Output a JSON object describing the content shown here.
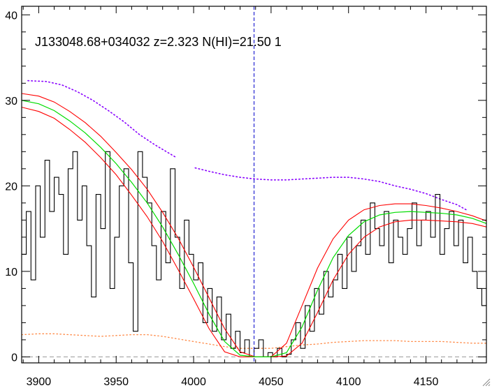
{
  "chart_data": {
    "type": "line",
    "title": "J133048.68+034032 z=2.323 N(HI)=21.50 1",
    "xlabel": "",
    "ylabel": "",
    "xlim": [
      3889,
      4189
    ],
    "ylim": [
      -0.7,
      41
    ],
    "x_ticks": [
      3900,
      3950,
      4000,
      4050,
      4100,
      4150
    ],
    "y_ticks": [
      0,
      10,
      20,
      30,
      40
    ],
    "grid": false,
    "legend": "none",
    "marker_line_x": 4039,
    "colors": {
      "flux": "#000000",
      "fit": "#00dd00",
      "fit_bounds": "#ff0000",
      "continuum": "#8800ff",
      "error": "#ff8844",
      "marker": "#0000cc",
      "zero_line": "#999999"
    },
    "series": [
      {
        "role": "flux",
        "x": [
          3889,
          3892,
          3895,
          3898,
          3901,
          3904,
          3907,
          3910,
          3913,
          3916,
          3919,
          3922,
          3925,
          3928,
          3931,
          3934,
          3937,
          3940,
          3943,
          3946,
          3949,
          3952,
          3955,
          3958,
          3961,
          3964,
          3967,
          3970,
          3973,
          3976,
          3979,
          3982,
          3985,
          3988,
          3991,
          3994,
          3997,
          4000,
          4003,
          4006,
          4009,
          4012,
          4015,
          4018,
          4021,
          4024,
          4027,
          4030,
          4033,
          4036,
          4039,
          4042,
          4045,
          4048,
          4051,
          4054,
          4057,
          4060,
          4063,
          4066,
          4069,
          4072,
          4075,
          4078,
          4081,
          4084,
          4087,
          4090,
          4093,
          4096,
          4099,
          4102,
          4105,
          4108,
          4111,
          4114,
          4117,
          4120,
          4123,
          4126,
          4129,
          4132,
          4135,
          4138,
          4141,
          4144,
          4147,
          4150,
          4153,
          4156,
          4159,
          4162,
          4165,
          4168,
          4171,
          4174,
          4177,
          4180,
          4183,
          4186,
          4189
        ],
        "y": [
          12,
          17,
          9,
          20,
          14,
          23,
          17,
          21,
          19,
          12,
          22,
          24,
          16,
          20,
          13,
          7,
          19,
          15,
          24,
          8,
          14,
          20,
          22,
          11,
          3,
          24,
          21,
          18,
          13,
          9,
          17,
          11,
          22,
          14,
          8,
          16,
          12,
          9,
          11,
          4,
          8,
          3,
          7,
          2,
          5,
          1,
          3,
          0.5,
          2,
          0,
          1,
          2,
          0,
          0.5,
          0,
          1,
          0,
          0.3,
          2,
          4,
          1,
          6,
          3,
          8,
          5,
          10,
          7,
          9,
          12,
          8,
          14,
          10,
          13,
          16,
          12,
          18,
          15,
          13,
          17,
          11,
          16,
          14,
          12,
          15,
          18,
          13,
          16,
          17,
          14,
          19,
          12,
          15,
          17,
          13,
          16,
          11,
          14,
          10,
          8,
          6,
          9
        ]
      },
      {
        "role": "fit",
        "x": [
          3889,
          3900,
          3910,
          3920,
          3930,
          3940,
          3950,
          3960,
          3970,
          3980,
          3990,
          4000,
          4010,
          4020,
          4030,
          4040,
          4050,
          4060,
          4070,
          4080,
          4090,
          4100,
          4110,
          4120,
          4130,
          4140,
          4150,
          4160,
          4170,
          4180,
          4189
        ],
        "y": [
          30,
          29.6,
          28.8,
          27.6,
          26.2,
          24.5,
          22.6,
          20.4,
          18,
          15.2,
          12,
          8.6,
          5,
          1.8,
          0.2,
          0,
          0,
          0.5,
          3.5,
          7.8,
          11.6,
          14.2,
          15.8,
          16.6,
          16.9,
          17,
          16.9,
          16.8,
          16.6,
          16.2,
          15.6
        ]
      },
      {
        "role": "fit_upper",
        "x": [
          3889,
          3900,
          3910,
          3920,
          3930,
          3940,
          3950,
          3960,
          3970,
          3980,
          3990,
          4000,
          4010,
          4020,
          4030,
          4040,
          4050,
          4060,
          4070,
          4080,
          4090,
          4100,
          4110,
          4120,
          4130,
          4140,
          4150,
          4160,
          4170,
          4180,
          4189
        ],
        "y": [
          30.8,
          30.5,
          29.8,
          28.7,
          27.4,
          25.8,
          23.9,
          21.9,
          19.6,
          16.9,
          13.9,
          10.5,
          6.9,
          3.3,
          0.6,
          0,
          0,
          1.6,
          6,
          10.4,
          13.8,
          16,
          17.2,
          17.7,
          17.9,
          17.9,
          17.7,
          17.4,
          17,
          16.5,
          15.9
        ]
      },
      {
        "role": "fit_lower",
        "x": [
          3889,
          3900,
          3910,
          3920,
          3930,
          3940,
          3950,
          3960,
          3970,
          3980,
          3990,
          4000,
          4010,
          4020,
          4030,
          4040,
          4050,
          4060,
          4070,
          4080,
          4090,
          4100,
          4110,
          4120,
          4130,
          4140,
          4150,
          4160,
          4170,
          4180,
          4189
        ],
        "y": [
          29.2,
          28.7,
          27.9,
          26.6,
          25.1,
          23.3,
          21.3,
          18.9,
          16.4,
          13.5,
          10.2,
          6.8,
          3.3,
          0.6,
          0,
          0,
          0,
          0.1,
          1.6,
          5.2,
          9,
          12,
          14,
          15.2,
          15.8,
          16,
          16,
          15.9,
          15.8,
          15.6,
          15.2
        ]
      },
      {
        "role": "continuum",
        "x": [
          3893,
          3905,
          3915,
          3925,
          3935,
          3945,
          3955,
          3965,
          3975,
          3988,
          null,
          4001,
          4010,
          4020,
          4030,
          4040,
          4050,
          4060,
          4070,
          4080,
          4090,
          4100,
          4110,
          4120,
          4130,
          4140,
          4150,
          4160,
          4170,
          4177
        ],
        "y": [
          32.3,
          32.2,
          31.8,
          31,
          30,
          28.8,
          27.5,
          26,
          24.8,
          23.4,
          null,
          22.1,
          21.7,
          21.3,
          21,
          20.8,
          20.7,
          20.7,
          20.8,
          20.9,
          21,
          21,
          20.8,
          20.5,
          20,
          19.6,
          19.1,
          18.4,
          17.8,
          17.1
        ]
      },
      {
        "role": "error",
        "x": [
          3889,
          3900,
          3910,
          3920,
          3930,
          3940,
          3950,
          3960,
          3970,
          3980,
          3990,
          4000,
          4010,
          4020,
          4030,
          4040,
          4050,
          4060,
          4070,
          4080,
          4090,
          4100,
          4110,
          4120,
          4130,
          4140,
          4150,
          4160,
          4170,
          4180,
          4189
        ],
        "y": [
          2.6,
          2.7,
          2.7,
          2.6,
          2.5,
          2.4,
          2.5,
          2.6,
          2.6,
          2.4,
          2.1,
          1.8,
          1.5,
          1.2,
          1,
          1,
          1,
          1.2,
          1.4,
          1.5,
          1.7,
          1.8,
          1.9,
          1.9,
          1.9,
          1.8,
          1.8,
          1.8,
          1.7,
          1.6,
          1.6
        ]
      }
    ]
  }
}
